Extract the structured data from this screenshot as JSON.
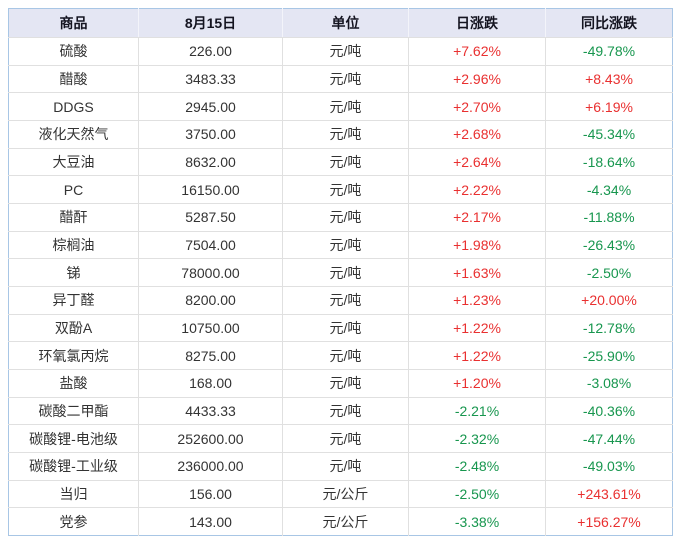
{
  "colors": {
    "up": "#e93030",
    "down": "#17964e",
    "header_bg": "#e4e6f3",
    "outer_border": "#a8c6e5",
    "grid_line": "#e0e0e0",
    "text": "#333333"
  },
  "chart_data": {
    "type": "table",
    "columns": [
      "商品",
      "8月15日",
      "单位",
      "日涨跌",
      "同比涨跌"
    ],
    "rows": [
      [
        "硫酸",
        "226.00",
        "元/吨",
        "+7.62%",
        "-49.78%"
      ],
      [
        "醋酸",
        "3483.33",
        "元/吨",
        "+2.96%",
        "+8.43%"
      ],
      [
        "DDGS",
        "2945.00",
        "元/吨",
        "+2.70%",
        "+6.19%"
      ],
      [
        "液化天然气",
        "3750.00",
        "元/吨",
        "+2.68%",
        "-45.34%"
      ],
      [
        "大豆油",
        "8632.00",
        "元/吨",
        "+2.64%",
        "-18.64%"
      ],
      [
        "PC",
        "16150.00",
        "元/吨",
        "+2.22%",
        "-4.34%"
      ],
      [
        "醋酐",
        "5287.50",
        "元/吨",
        "+2.17%",
        "-11.88%"
      ],
      [
        "棕榈油",
        "7504.00",
        "元/吨",
        "+1.98%",
        "-26.43%"
      ],
      [
        "锑",
        "78000.00",
        "元/吨",
        "+1.63%",
        "-2.50%"
      ],
      [
        "异丁醛",
        "8200.00",
        "元/吨",
        "+1.23%",
        "+20.00%"
      ],
      [
        "双酚A",
        "10750.00",
        "元/吨",
        "+1.22%",
        "-12.78%"
      ],
      [
        "环氧氯丙烷",
        "8275.00",
        "元/吨",
        "+1.22%",
        "-25.90%"
      ],
      [
        "盐酸",
        "168.00",
        "元/吨",
        "+1.20%",
        "-3.08%"
      ],
      [
        "碳酸二甲酯",
        "4433.33",
        "元/吨",
        "-2.21%",
        "-40.36%"
      ],
      [
        "碳酸锂-电池级",
        "252600.00",
        "元/吨",
        "-2.32%",
        "-47.44%"
      ],
      [
        "碳酸锂-工业级",
        "236000.00",
        "元/吨",
        "-2.48%",
        "-49.03%"
      ],
      [
        "当归",
        "156.00",
        "元/公斤",
        "-2.50%",
        "+243.61%"
      ],
      [
        "党参",
        "143.00",
        "元/公斤",
        "-3.38%",
        "+156.27%"
      ]
    ]
  }
}
